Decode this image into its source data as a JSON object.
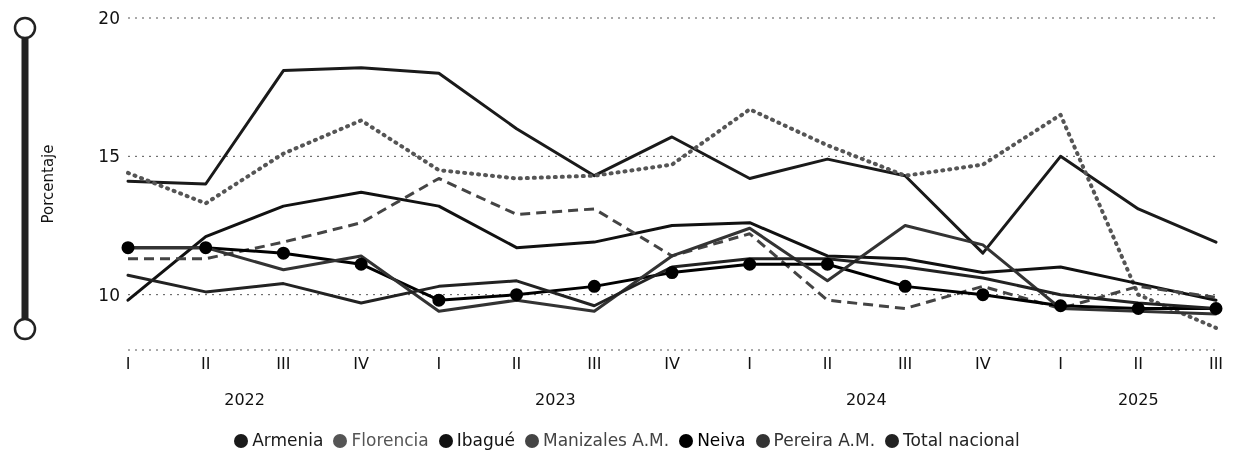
{
  "chart_data": {
    "type": "line",
    "ylabel": "Porcentaje",
    "categories": [
      "I",
      "II",
      "III",
      "IV",
      "I",
      "II",
      "III",
      "IV",
      "I",
      "II",
      "III",
      "IV",
      "I",
      "II",
      "III"
    ],
    "annotations": [
      "2022",
      "2023",
      "2024",
      "2025"
    ],
    "ylim": [
      8,
      20
    ],
    "yticks": [
      10,
      15,
      20
    ],
    "grid": "y",
    "legend": "bottom",
    "series": [
      {
        "name": "Armenia",
        "color": "#1a1a1a",
        "line_style": "solid",
        "marker": "none",
        "values": [
          14.1,
          14.0,
          18.1,
          18.2,
          18.0,
          16.0,
          14.3,
          15.7,
          14.2,
          14.9,
          14.3,
          11.5,
          15.0,
          13.1,
          11.9
        ]
      },
      {
        "name": "Florencia",
        "color": "#555555",
        "line_style": "dotted",
        "marker": "none",
        "values": [
          14.4,
          13.3,
          15.1,
          16.3,
          14.5,
          14.2,
          14.3,
          14.7,
          16.7,
          15.4,
          14.3,
          14.7,
          16.5,
          10.0,
          8.8
        ]
      },
      {
        "name": "Ibagué",
        "color": "#111111",
        "line_style": "solid",
        "marker": "none",
        "values": [
          9.8,
          12.1,
          13.2,
          13.7,
          13.2,
          11.7,
          11.9,
          12.5,
          12.6,
          11.4,
          11.3,
          10.8,
          11.0,
          10.4,
          9.8
        ]
      },
      {
        "name": "Manizales A.M.",
        "color": "#444444",
        "line_style": "dashed",
        "marker": "none",
        "values": [
          11.3,
          11.3,
          11.9,
          12.6,
          14.2,
          12.9,
          13.1,
          11.4,
          12.2,
          9.8,
          9.5,
          10.3,
          9.5,
          10.3,
          9.9
        ]
      },
      {
        "name": "Neiva",
        "color": "#000000",
        "line_style": "solid",
        "marker": "circle",
        "values": [
          11.7,
          11.7,
          11.5,
          11.1,
          9.8,
          10.0,
          10.3,
          10.8,
          11.1,
          11.1,
          10.3,
          10.0,
          9.6,
          9.5,
          9.5
        ]
      },
      {
        "name": "Pereira A.M.",
        "color": "#333333",
        "line_style": "solid",
        "marker": "none",
        "values": [
          11.7,
          11.7,
          10.9,
          11.4,
          9.4,
          9.8,
          9.4,
          11.4,
          12.4,
          10.5,
          12.5,
          11.8,
          9.5,
          9.4,
          9.3
        ]
      },
      {
        "name": "Total nacional",
        "color": "#222222",
        "line_style": "solid",
        "marker": "none",
        "values": [
          10.7,
          10.1,
          10.4,
          9.7,
          10.3,
          10.5,
          9.6,
          11.0,
          11.3,
          11.3,
          11.0,
          10.6,
          10.0,
          9.7,
          9.5
        ]
      }
    ]
  }
}
